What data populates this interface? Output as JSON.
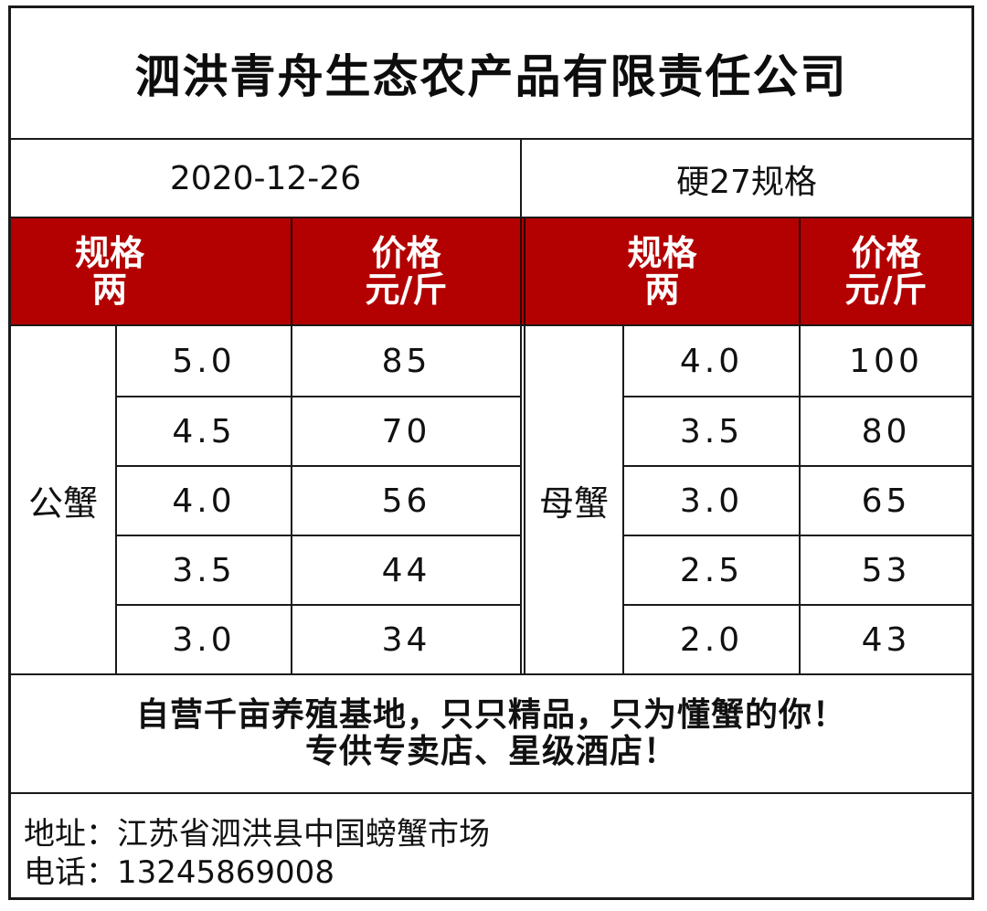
{
  "company": {
    "name": "泗洪青舟生态农产品有限责任公司"
  },
  "date": "2020-12-26",
  "spec_note": "硬27规格",
  "male": {
    "group_label": "公蟹",
    "header_spec_line1": "规格",
    "header_spec_line2": "两",
    "header_price_line1": "价格",
    "header_price_line2": "元/斤",
    "rows": [
      {
        "spec": "5.0",
        "price": "85"
      },
      {
        "spec": "4.5",
        "price": "70"
      },
      {
        "spec": "4.0",
        "price": "56"
      },
      {
        "spec": "3.5",
        "price": "44"
      },
      {
        "spec": "3.0",
        "price": "34"
      }
    ]
  },
  "female": {
    "group_label": "母蟹",
    "header_spec_line1": "规格",
    "header_spec_line2": "两",
    "header_price_line1": "价格",
    "header_price_line2": "元/斤",
    "rows": [
      {
        "spec": "4.0",
        "price": "100"
      },
      {
        "spec": "3.5",
        "price": "80"
      },
      {
        "spec": "3.0",
        "price": "65"
      },
      {
        "spec": "2.5",
        "price": "53"
      },
      {
        "spec": "2.0",
        "price": "43"
      }
    ]
  },
  "slogan": {
    "line1": "自营千亩养殖基地，只只精品，只为懂蟹的你！",
    "line2": "专供专卖店、星级酒店！"
  },
  "contact": {
    "address_label": "地址：",
    "address": "江苏省泗洪县中国螃蟹市场",
    "phone_label": "电话：",
    "phone": "13245869008"
  },
  "colors": {
    "header_band": "#b30000",
    "header_text": "#ffffff",
    "border": "#1a1a1a"
  }
}
